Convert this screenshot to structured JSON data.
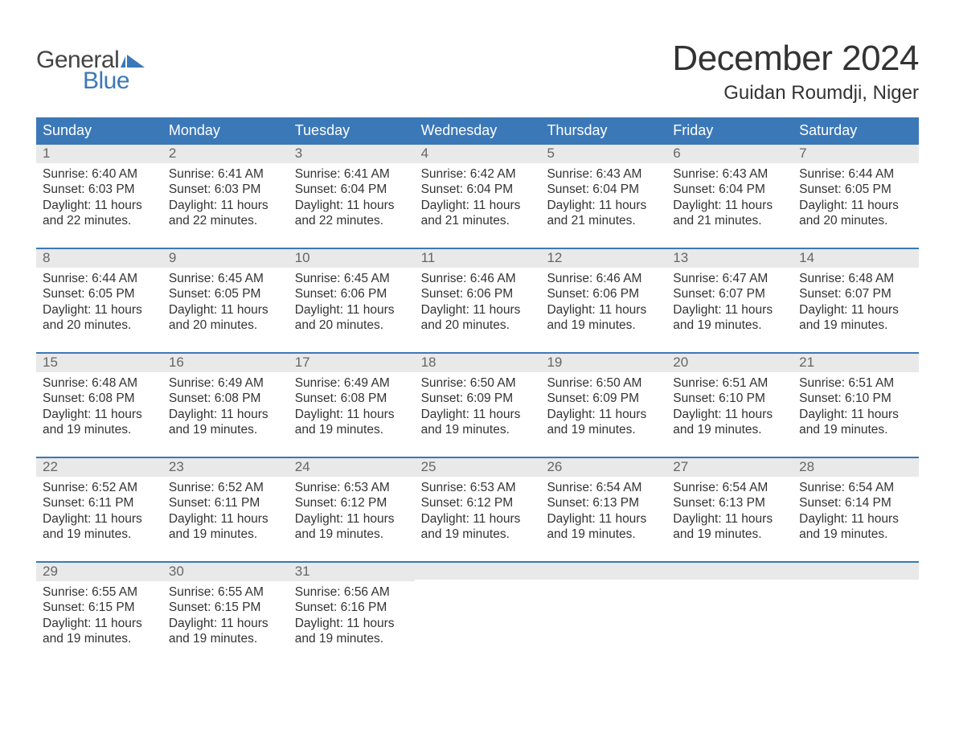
{
  "logo": {
    "word1": "General",
    "word2": "Blue"
  },
  "title": "December 2024",
  "location": "Guidan Roumdji, Niger",
  "colors": {
    "header_bg": "#3b78b8",
    "header_text": "#ffffff",
    "daynum_bg": "#e9e9e9",
    "daynum_text": "#666666",
    "body_text": "#333333",
    "rule": "#3b78b8",
    "logo_gray": "#444444",
    "logo_blue": "#3b78b8",
    "page_bg": "#ffffff"
  },
  "typography": {
    "title_fontsize": 44,
    "location_fontsize": 24,
    "weekday_fontsize": 18,
    "daynum_fontsize": 17,
    "body_fontsize": 15.5,
    "logo_fontsize": 30
  },
  "weekdays": [
    "Sunday",
    "Monday",
    "Tuesday",
    "Wednesday",
    "Thursday",
    "Friday",
    "Saturday"
  ],
  "weeks": [
    [
      {
        "n": "1",
        "sr": "Sunrise: 6:40 AM",
        "ss": "Sunset: 6:03 PM",
        "d1": "Daylight: 11 hours",
        "d2": "and 22 minutes."
      },
      {
        "n": "2",
        "sr": "Sunrise: 6:41 AM",
        "ss": "Sunset: 6:03 PM",
        "d1": "Daylight: 11 hours",
        "d2": "and 22 minutes."
      },
      {
        "n": "3",
        "sr": "Sunrise: 6:41 AM",
        "ss": "Sunset: 6:04 PM",
        "d1": "Daylight: 11 hours",
        "d2": "and 22 minutes."
      },
      {
        "n": "4",
        "sr": "Sunrise: 6:42 AM",
        "ss": "Sunset: 6:04 PM",
        "d1": "Daylight: 11 hours",
        "d2": "and 21 minutes."
      },
      {
        "n": "5",
        "sr": "Sunrise: 6:43 AM",
        "ss": "Sunset: 6:04 PM",
        "d1": "Daylight: 11 hours",
        "d2": "and 21 minutes."
      },
      {
        "n": "6",
        "sr": "Sunrise: 6:43 AM",
        "ss": "Sunset: 6:04 PM",
        "d1": "Daylight: 11 hours",
        "d2": "and 21 minutes."
      },
      {
        "n": "7",
        "sr": "Sunrise: 6:44 AM",
        "ss": "Sunset: 6:05 PM",
        "d1": "Daylight: 11 hours",
        "d2": "and 20 minutes."
      }
    ],
    [
      {
        "n": "8",
        "sr": "Sunrise: 6:44 AM",
        "ss": "Sunset: 6:05 PM",
        "d1": "Daylight: 11 hours",
        "d2": "and 20 minutes."
      },
      {
        "n": "9",
        "sr": "Sunrise: 6:45 AM",
        "ss": "Sunset: 6:05 PM",
        "d1": "Daylight: 11 hours",
        "d2": "and 20 minutes."
      },
      {
        "n": "10",
        "sr": "Sunrise: 6:45 AM",
        "ss": "Sunset: 6:06 PM",
        "d1": "Daylight: 11 hours",
        "d2": "and 20 minutes."
      },
      {
        "n": "11",
        "sr": "Sunrise: 6:46 AM",
        "ss": "Sunset: 6:06 PM",
        "d1": "Daylight: 11 hours",
        "d2": "and 20 minutes."
      },
      {
        "n": "12",
        "sr": "Sunrise: 6:46 AM",
        "ss": "Sunset: 6:06 PM",
        "d1": "Daylight: 11 hours",
        "d2": "and 19 minutes."
      },
      {
        "n": "13",
        "sr": "Sunrise: 6:47 AM",
        "ss": "Sunset: 6:07 PM",
        "d1": "Daylight: 11 hours",
        "d2": "and 19 minutes."
      },
      {
        "n": "14",
        "sr": "Sunrise: 6:48 AM",
        "ss": "Sunset: 6:07 PM",
        "d1": "Daylight: 11 hours",
        "d2": "and 19 minutes."
      }
    ],
    [
      {
        "n": "15",
        "sr": "Sunrise: 6:48 AM",
        "ss": "Sunset: 6:08 PM",
        "d1": "Daylight: 11 hours",
        "d2": "and 19 minutes."
      },
      {
        "n": "16",
        "sr": "Sunrise: 6:49 AM",
        "ss": "Sunset: 6:08 PM",
        "d1": "Daylight: 11 hours",
        "d2": "and 19 minutes."
      },
      {
        "n": "17",
        "sr": "Sunrise: 6:49 AM",
        "ss": "Sunset: 6:08 PM",
        "d1": "Daylight: 11 hours",
        "d2": "and 19 minutes."
      },
      {
        "n": "18",
        "sr": "Sunrise: 6:50 AM",
        "ss": "Sunset: 6:09 PM",
        "d1": "Daylight: 11 hours",
        "d2": "and 19 minutes."
      },
      {
        "n": "19",
        "sr": "Sunrise: 6:50 AM",
        "ss": "Sunset: 6:09 PM",
        "d1": "Daylight: 11 hours",
        "d2": "and 19 minutes."
      },
      {
        "n": "20",
        "sr": "Sunrise: 6:51 AM",
        "ss": "Sunset: 6:10 PM",
        "d1": "Daylight: 11 hours",
        "d2": "and 19 minutes."
      },
      {
        "n": "21",
        "sr": "Sunrise: 6:51 AM",
        "ss": "Sunset: 6:10 PM",
        "d1": "Daylight: 11 hours",
        "d2": "and 19 minutes."
      }
    ],
    [
      {
        "n": "22",
        "sr": "Sunrise: 6:52 AM",
        "ss": "Sunset: 6:11 PM",
        "d1": "Daylight: 11 hours",
        "d2": "and 19 minutes."
      },
      {
        "n": "23",
        "sr": "Sunrise: 6:52 AM",
        "ss": "Sunset: 6:11 PM",
        "d1": "Daylight: 11 hours",
        "d2": "and 19 minutes."
      },
      {
        "n": "24",
        "sr": "Sunrise: 6:53 AM",
        "ss": "Sunset: 6:12 PM",
        "d1": "Daylight: 11 hours",
        "d2": "and 19 minutes."
      },
      {
        "n": "25",
        "sr": "Sunrise: 6:53 AM",
        "ss": "Sunset: 6:12 PM",
        "d1": "Daylight: 11 hours",
        "d2": "and 19 minutes."
      },
      {
        "n": "26",
        "sr": "Sunrise: 6:54 AM",
        "ss": "Sunset: 6:13 PM",
        "d1": "Daylight: 11 hours",
        "d2": "and 19 minutes."
      },
      {
        "n": "27",
        "sr": "Sunrise: 6:54 AM",
        "ss": "Sunset: 6:13 PM",
        "d1": "Daylight: 11 hours",
        "d2": "and 19 minutes."
      },
      {
        "n": "28",
        "sr": "Sunrise: 6:54 AM",
        "ss": "Sunset: 6:14 PM",
        "d1": "Daylight: 11 hours",
        "d2": "and 19 minutes."
      }
    ],
    [
      {
        "n": "29",
        "sr": "Sunrise: 6:55 AM",
        "ss": "Sunset: 6:15 PM",
        "d1": "Daylight: 11 hours",
        "d2": "and 19 minutes."
      },
      {
        "n": "30",
        "sr": "Sunrise: 6:55 AM",
        "ss": "Sunset: 6:15 PM",
        "d1": "Daylight: 11 hours",
        "d2": "and 19 minutes."
      },
      {
        "n": "31",
        "sr": "Sunrise: 6:56 AM",
        "ss": "Sunset: 6:16 PM",
        "d1": "Daylight: 11 hours",
        "d2": "and 19 minutes."
      },
      null,
      null,
      null,
      null
    ]
  ]
}
